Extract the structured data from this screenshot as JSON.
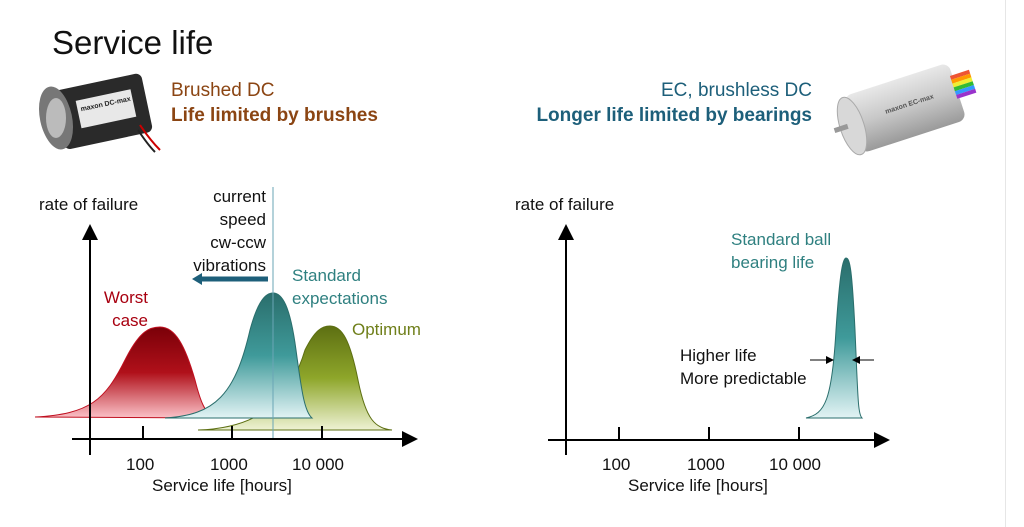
{
  "slide": {
    "title": "Service life",
    "brushed": {
      "subtitle": "Brushed DC",
      "headline": "Life limited by brushes",
      "motor_label": "maxon DC-max"
    },
    "brushless": {
      "subtitle": "EC, brushless DC",
      "headline": "Longer life limited by bearings",
      "motor_label": "maxon EC-max"
    }
  },
  "left_chart": {
    "ylabel": "rate of failure",
    "xlabel": "Service life [hours]",
    "ticks": [
      "100",
      "1000",
      "10 000"
    ],
    "factors": [
      "current",
      "speed",
      "cw-ccw",
      "vibrations"
    ],
    "curves": [
      {
        "name": "Worst case",
        "line1": "Worst",
        "line2": "case",
        "color": "#a80010"
      },
      {
        "name": "Standard expectations",
        "line1": "Standard",
        "line2": "expectations",
        "color": "#2f8080"
      },
      {
        "name": "Optimum",
        "line1": "Optimum",
        "color": "#6f7f1a"
      }
    ]
  },
  "right_chart": {
    "ylabel": "rate of failure",
    "xlabel": "Service life [hours]",
    "ticks": [
      "100",
      "1000",
      "10 000"
    ],
    "curve": {
      "line1": "Standard ball",
      "line2": "bearing life",
      "color": "#2f8080"
    },
    "note1": "Higher life",
    "note2": "More predictable"
  },
  "colors": {
    "brown": "#8b4513",
    "blue": "#1d5f7a",
    "red": "#a80010",
    "teal": "#2f8080",
    "olive": "#6f7f1a"
  }
}
